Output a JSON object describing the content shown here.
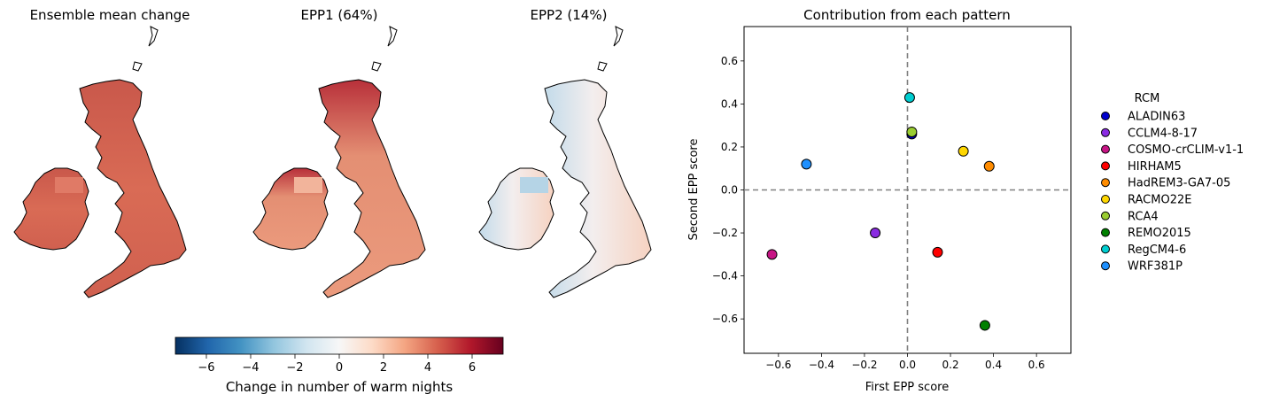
{
  "maps": [
    {
      "title": "Ensemble mean change"
    },
    {
      "title": "EPP1 (64%)"
    },
    {
      "title": "EPP2 (14%)"
    }
  ],
  "colorbar": {
    "label": "Change in number of warm nights",
    "ticks": [
      "−6",
      "−4",
      "−2",
      "0",
      "2",
      "4",
      "6"
    ],
    "range": [
      -7.4,
      7.4
    ],
    "colors": [
      "#053061",
      "#2166ac",
      "#4393c3",
      "#92c5de",
      "#d1e5f0",
      "#f7f7f7",
      "#fddbc7",
      "#f4a582",
      "#d6604d",
      "#b2182b",
      "#67001f"
    ]
  },
  "chart_data": {
    "type": "scatter",
    "title": "Contribution from each pattern",
    "xlabel": "First EPP score",
    "ylabel": "Second EPP score",
    "xlim": [
      -0.76,
      0.76
    ],
    "ylim": [
      -0.76,
      0.76
    ],
    "xticks": [
      "−0.6",
      "−0.4",
      "−0.2",
      "0.0",
      "0.2",
      "0.4",
      "0.6"
    ],
    "yticks": [
      "−0.6",
      "−0.4",
      "−0.2",
      "0.0",
      "0.2",
      "0.4",
      "0.6"
    ],
    "reference_lines": {
      "x": 0,
      "y": 0,
      "style": "dashed",
      "color": "#808080"
    },
    "legend_title": "RCM",
    "legend_position": "right, outside",
    "series": [
      {
        "name": "ALADIN63",
        "color": "#0000cd",
        "x": 0.02,
        "y": 0.26
      },
      {
        "name": "CCLM4-8-17",
        "color": "#8a2be2",
        "x": -0.15,
        "y": -0.2
      },
      {
        "name": "COSMO-crCLIM-v1-1",
        "color": "#c71585",
        "x": -0.63,
        "y": -0.3
      },
      {
        "name": "HIRHAM5",
        "color": "#ff0000",
        "x": 0.14,
        "y": -0.29
      },
      {
        "name": "HadREM3-GA7-05",
        "color": "#ff8c00",
        "x": 0.38,
        "y": 0.11
      },
      {
        "name": "RACMO22E",
        "color": "#ffd700",
        "x": 0.26,
        "y": 0.18
      },
      {
        "name": "RCA4",
        "color": "#9acd32",
        "x": 0.02,
        "y": 0.27
      },
      {
        "name": "REMO2015",
        "color": "#008000",
        "x": 0.36,
        "y": -0.63
      },
      {
        "name": "RegCM4-6",
        "color": "#00ced1",
        "x": 0.01,
        "y": 0.43
      },
      {
        "name": "WRF381P",
        "color": "#1e90ff",
        "x": -0.47,
        "y": 0.12
      }
    ]
  }
}
